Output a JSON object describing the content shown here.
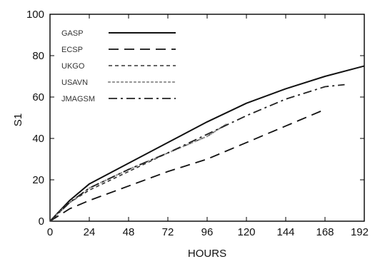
{
  "chart_data": {
    "type": "line",
    "title": "",
    "xlabel": "HOURS",
    "ylabel": "S1",
    "xlim": [
      0,
      192
    ],
    "ylim": [
      0,
      100
    ],
    "x_ticks": [
      "0",
      "24",
      "48",
      "72",
      "96",
      "120",
      "144",
      "168",
      "192"
    ],
    "y_ticks": [
      "0",
      "20",
      "40",
      "60",
      "80",
      "100"
    ],
    "grid": false,
    "legend_position": "top-left",
    "series": [
      {
        "name": "GASP",
        "style": "solid",
        "color": "#111111",
        "x": [
          0,
          12,
          24,
          48,
          72,
          96,
          120,
          144,
          168,
          192
        ],
        "y": [
          0,
          10,
          18,
          28,
          38,
          48,
          57,
          64,
          70,
          75
        ]
      },
      {
        "name": "ECSP",
        "style": "long-dash",
        "color": "#111111",
        "x": [
          0,
          12,
          24,
          48,
          72,
          96,
          120,
          144,
          168
        ],
        "y": [
          0,
          6,
          10,
          17,
          24,
          30,
          38,
          46,
          54
        ]
      },
      {
        "name": "UKGO",
        "style": "short-dash",
        "color": "#333333",
        "x": [
          0,
          12,
          24,
          48,
          72,
          96,
          108
        ],
        "y": [
          0,
          9,
          15,
          24,
          33,
          41,
          47
        ]
      },
      {
        "name": "USAVN",
        "style": "dotted",
        "color": "#999999",
        "x": [
          0,
          12,
          24,
          48,
          72,
          96,
          108
        ],
        "y": [
          0,
          9,
          16,
          25,
          33,
          41,
          47
        ]
      },
      {
        "name": "JMAGSM",
        "style": "dash-dot",
        "color": "#222222",
        "x": [
          0,
          12,
          24,
          48,
          72,
          96,
          120,
          144,
          168,
          180
        ],
        "y": [
          0,
          9,
          16,
          25,
          33,
          42,
          51,
          59,
          65,
          66
        ]
      }
    ]
  }
}
